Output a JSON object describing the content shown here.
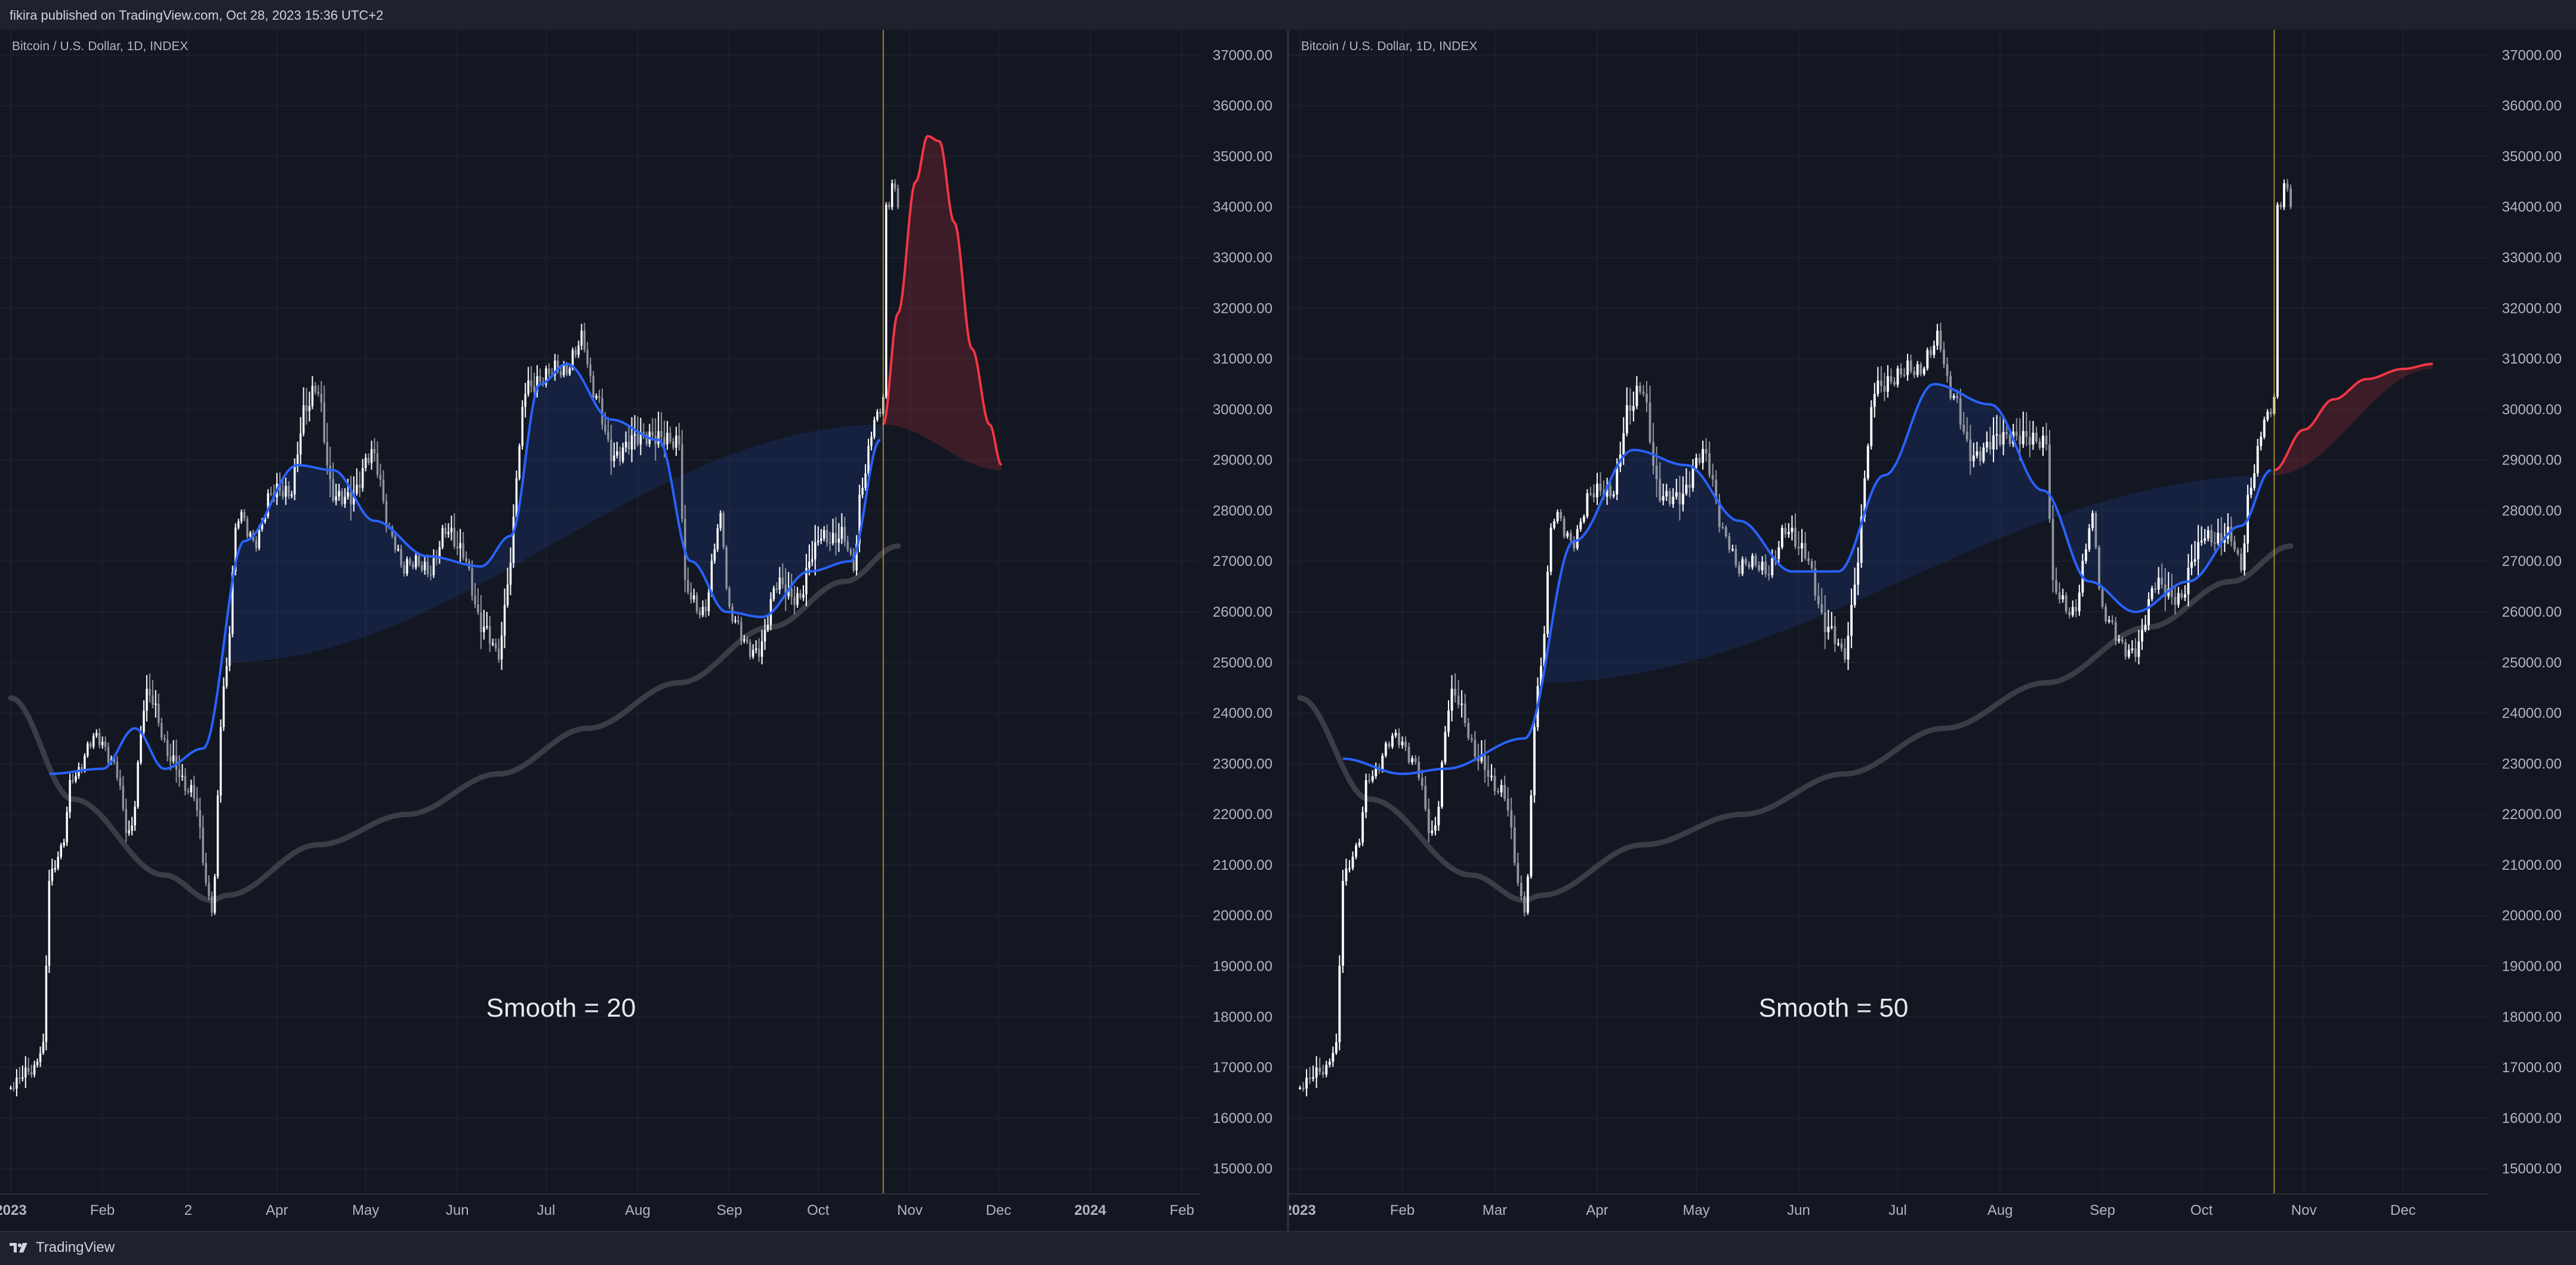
{
  "header": {
    "publish_info": "fikira published on TradingView.com, Oct 28, 2023 15:36 UTC+2"
  },
  "footer": {
    "brand_label": "TradingView"
  },
  "colors": {
    "background": "#131722",
    "candle_up": "#ffffff",
    "candle_down": "#8f939e",
    "smooth_line": "#2962ff",
    "forecast_line": "#f23645",
    "long_ma": "#3a3d46",
    "marker_line": "#c9a227",
    "fill_blue": "#2962ff",
    "fill_red": "#f23645"
  },
  "chart_data": [
    {
      "type": "candlestick",
      "title": "Bitcoin / U.S. Dollar, 1D, INDEX",
      "annotation": "Smooth = 20",
      "y_ticks": [
        "37000.00",
        "36000.00",
        "35000.00",
        "34000.00",
        "33000.00",
        "32000.00",
        "31000.00",
        "30000.00",
        "29000.00",
        "28000.00",
        "27000.00",
        "26000.00",
        "25000.00",
        "24000.00",
        "23000.00",
        "22000.00",
        "21000.00",
        "20000.00",
        "19000.00",
        "18000.00",
        "17000.00",
        "16000.00",
        "15000.00"
      ],
      "ylim": [
        14500,
        37500
      ],
      "x_ticks": [
        {
          "label": "2023",
          "date": "2023-01-01"
        },
        {
          "label": "Feb",
          "date": "2023-02-01"
        },
        {
          "label": "2",
          "date": "2023-03-02"
        },
        {
          "label": "Apr",
          "date": "2023-04-01"
        },
        {
          "label": "May",
          "date": "2023-05-01"
        },
        {
          "label": "Jun",
          "date": "2023-06-01"
        },
        {
          "label": "Jul",
          "date": "2023-07-01"
        },
        {
          "label": "Aug",
          "date": "2023-08-01"
        },
        {
          "label": "Sep",
          "date": "2023-09-01"
        },
        {
          "label": "Oct",
          "date": "2023-10-01"
        },
        {
          "label": "Nov",
          "date": "2023-11-01"
        },
        {
          "label": "Dec",
          "date": "2023-12-01"
        },
        {
          "label": "2024",
          "date": "2024-01-01"
        },
        {
          "label": "Feb",
          "date": "2024-02-01"
        }
      ],
      "x_range": [
        "2023-01-01",
        "2024-02-07"
      ],
      "current_date_marker": "2023-10-23",
      "price_series": [
        [
          "2023-01-01",
          16600
        ],
        [
          "2023-01-08",
          16900
        ],
        [
          "2023-01-12",
          17500
        ],
        [
          "2023-01-14",
          20800
        ],
        [
          "2023-01-18",
          21200
        ],
        [
          "2023-01-22",
          22700
        ],
        [
          "2023-01-29",
          23600
        ],
        [
          "2023-02-05",
          22900
        ],
        [
          "2023-02-10",
          21700
        ],
        [
          "2023-02-16",
          24300
        ],
        [
          "2023-02-24",
          23200
        ],
        [
          "2023-03-03",
          22400
        ],
        [
          "2023-03-10",
          20200
        ],
        [
          "2023-03-14",
          24600
        ],
        [
          "2023-03-19",
          27800
        ],
        [
          "2023-03-24",
          27400
        ],
        [
          "2023-03-30",
          28400
        ],
        [
          "2023-04-05",
          28200
        ],
        [
          "2023-04-11",
          30200
        ],
        [
          "2023-04-14",
          30500
        ],
        [
          "2023-04-20",
          28200
        ],
        [
          "2023-04-26",
          28400
        ],
        [
          "2023-05-03",
          29000
        ],
        [
          "2023-05-10",
          27600
        ],
        [
          "2023-05-14",
          26900
        ],
        [
          "2023-05-22",
          26800
        ],
        [
          "2023-05-28",
          27700
        ],
        [
          "2023-06-02",
          27100
        ],
        [
          "2023-06-10",
          25800
        ],
        [
          "2023-06-15",
          25100
        ],
        [
          "2023-06-19",
          26800
        ],
        [
          "2023-06-21",
          28800
        ],
        [
          "2023-06-24",
          30600
        ],
        [
          "2023-06-30",
          30500
        ],
        [
          "2023-07-06",
          30800
        ],
        [
          "2023-07-13",
          31400
        ],
        [
          "2023-07-17",
          30200
        ],
        [
          "2023-07-24",
          29200
        ],
        [
          "2023-07-31",
          29300
        ],
        [
          "2023-08-08",
          29600
        ],
        [
          "2023-08-15",
          29200
        ],
        [
          "2023-08-17",
          26400
        ],
        [
          "2023-08-23",
          26100
        ],
        [
          "2023-08-29",
          27700
        ],
        [
          "2023-09-01",
          25900
        ],
        [
          "2023-09-11",
          25200
        ],
        [
          "2023-09-18",
          26600
        ],
        [
          "2023-09-25",
          26300
        ],
        [
          "2023-09-29",
          27000
        ],
        [
          "2023-10-02",
          27500
        ],
        [
          "2023-10-09",
          27600
        ],
        [
          "2023-10-13",
          26800
        ],
        [
          "2023-10-16",
          28500
        ],
        [
          "2023-10-20",
          29900
        ],
        [
          "2023-10-23",
          30300
        ],
        [
          "2023-10-24",
          34000
        ],
        [
          "2023-10-26",
          34300
        ],
        [
          "2023-10-28",
          34000
        ]
      ],
      "smooth_line": [
        [
          "2023-01-14",
          22800
        ],
        [
          "2023-02-01",
          22900
        ],
        [
          "2023-02-12",
          23700
        ],
        [
          "2023-02-22",
          22900
        ],
        [
          "2023-03-07",
          23300
        ],
        [
          "2023-03-21",
          27400
        ],
        [
          "2023-04-08",
          28900
        ],
        [
          "2023-04-20",
          28800
        ],
        [
          "2023-05-04",
          27800
        ],
        [
          "2023-05-22",
          27100
        ],
        [
          "2023-06-09",
          26900
        ],
        [
          "2023-06-19",
          27500
        ],
        [
          "2023-06-29",
          30500
        ],
        [
          "2023-07-08",
          30900
        ],
        [
          "2023-07-23",
          29800
        ],
        [
          "2023-08-08",
          29400
        ],
        [
          "2023-08-19",
          27000
        ],
        [
          "2023-08-31",
          26000
        ],
        [
          "2023-09-12",
          25900
        ],
        [
          "2023-09-28",
          26800
        ],
        [
          "2023-10-12",
          27000
        ],
        [
          "2023-10-22",
          29400
        ]
      ],
      "forecast_line": [
        [
          "2023-10-23",
          29700
        ],
        [
          "2023-10-28",
          31900
        ],
        [
          "2023-11-03",
          34500
        ],
        [
          "2023-11-07",
          35400
        ],
        [
          "2023-11-11",
          35300
        ],
        [
          "2023-11-16",
          33700
        ],
        [
          "2023-11-22",
          31200
        ],
        [
          "2023-11-28",
          29700
        ],
        [
          "2023-12-02",
          28900
        ]
      ],
      "band_baseline": [
        [
          "2023-03-14",
          25000
        ],
        [
          "2023-10-23",
          29700
        ],
        [
          "2023-12-02",
          28800
        ]
      ],
      "long_ma": [
        [
          "2023-01-01",
          24300
        ],
        [
          "2023-01-22",
          22300
        ],
        [
          "2023-02-22",
          20800
        ],
        [
          "2023-03-10",
          20300
        ],
        [
          "2023-03-15",
          20400
        ],
        [
          "2023-04-15",
          21400
        ],
        [
          "2023-05-15",
          22000
        ],
        [
          "2023-06-15",
          22800
        ],
        [
          "2023-07-15",
          23700
        ],
        [
          "2023-08-15",
          24600
        ],
        [
          "2023-09-15",
          25700
        ],
        [
          "2023-10-10",
          26600
        ],
        [
          "2023-10-28",
          27300
        ]
      ]
    },
    {
      "type": "candlestick",
      "title": "Bitcoin / U.S. Dollar, 1D, INDEX",
      "annotation": "Smooth = 50",
      "y_ticks": [
        "37000.00",
        "36000.00",
        "35000.00",
        "34000.00",
        "33000.00",
        "32000.00",
        "31000.00",
        "30000.00",
        "29000.00",
        "28000.00",
        "27000.00",
        "26000.00",
        "25000.00",
        "24000.00",
        "23000.00",
        "22000.00",
        "21000.00",
        "20000.00",
        "19000.00",
        "18000.00",
        "17000.00",
        "16000.00",
        "15000.00"
      ],
      "ylim": [
        14500,
        37500
      ],
      "x_ticks": [
        {
          "label": "2023",
          "date": "2023-01-01"
        },
        {
          "label": "Feb",
          "date": "2023-02-01"
        },
        {
          "label": "Mar",
          "date": "2023-03-01"
        },
        {
          "label": "Apr",
          "date": "2023-04-01"
        },
        {
          "label": "May",
          "date": "2023-05-01"
        },
        {
          "label": "Jun",
          "date": "2023-06-01"
        },
        {
          "label": "Jul",
          "date": "2023-07-01"
        },
        {
          "label": "Aug",
          "date": "2023-08-01"
        },
        {
          "label": "Sep",
          "date": "2023-09-01"
        },
        {
          "label": "Oct",
          "date": "2023-10-01"
        },
        {
          "label": "Nov",
          "date": "2023-11-01"
        },
        {
          "label": "Dec",
          "date": "2023-12-01"
        }
      ],
      "x_range": [
        "2023-01-01",
        "2023-12-27"
      ],
      "current_date_marker": "2023-10-23",
      "price_series": [
        [
          "2023-01-01",
          16600
        ],
        [
          "2023-01-08",
          16900
        ],
        [
          "2023-01-12",
          17500
        ],
        [
          "2023-01-14",
          20800
        ],
        [
          "2023-01-18",
          21200
        ],
        [
          "2023-01-22",
          22700
        ],
        [
          "2023-01-29",
          23600
        ],
        [
          "2023-02-05",
          22900
        ],
        [
          "2023-02-10",
          21700
        ],
        [
          "2023-02-16",
          24300
        ],
        [
          "2023-02-24",
          23200
        ],
        [
          "2023-03-03",
          22400
        ],
        [
          "2023-03-10",
          20200
        ],
        [
          "2023-03-14",
          24600
        ],
        [
          "2023-03-19",
          27800
        ],
        [
          "2023-03-24",
          27400
        ],
        [
          "2023-03-30",
          28400
        ],
        [
          "2023-04-05",
          28200
        ],
        [
          "2023-04-11",
          30200
        ],
        [
          "2023-04-14",
          30500
        ],
        [
          "2023-04-20",
          28200
        ],
        [
          "2023-04-26",
          28400
        ],
        [
          "2023-05-03",
          29000
        ],
        [
          "2023-05-10",
          27600
        ],
        [
          "2023-05-14",
          26900
        ],
        [
          "2023-05-22",
          26800
        ],
        [
          "2023-05-28",
          27700
        ],
        [
          "2023-06-02",
          27100
        ],
        [
          "2023-06-10",
          25800
        ],
        [
          "2023-06-15",
          25100
        ],
        [
          "2023-06-19",
          26800
        ],
        [
          "2023-06-21",
          28800
        ],
        [
          "2023-06-24",
          30600
        ],
        [
          "2023-06-30",
          30500
        ],
        [
          "2023-07-06",
          30800
        ],
        [
          "2023-07-13",
          31400
        ],
        [
          "2023-07-17",
          30200
        ],
        [
          "2023-07-24",
          29200
        ],
        [
          "2023-07-31",
          29300
        ],
        [
          "2023-08-08",
          29600
        ],
        [
          "2023-08-15",
          29200
        ],
        [
          "2023-08-17",
          26400
        ],
        [
          "2023-08-23",
          26100
        ],
        [
          "2023-08-29",
          27700
        ],
        [
          "2023-09-01",
          25900
        ],
        [
          "2023-09-11",
          25200
        ],
        [
          "2023-09-18",
          26600
        ],
        [
          "2023-09-25",
          26300
        ],
        [
          "2023-09-29",
          27000
        ],
        [
          "2023-10-02",
          27500
        ],
        [
          "2023-10-09",
          27600
        ],
        [
          "2023-10-13",
          26800
        ],
        [
          "2023-10-16",
          28500
        ],
        [
          "2023-10-20",
          29900
        ],
        [
          "2023-10-23",
          30300
        ],
        [
          "2023-10-24",
          34000
        ],
        [
          "2023-10-26",
          34300
        ],
        [
          "2023-10-28",
          34000
        ]
      ],
      "smooth_line": [
        [
          "2023-01-14",
          23100
        ],
        [
          "2023-02-01",
          22800
        ],
        [
          "2023-02-14",
          22900
        ],
        [
          "2023-03-10",
          23500
        ],
        [
          "2023-03-25",
          27400
        ],
        [
          "2023-04-12",
          29200
        ],
        [
          "2023-04-28",
          28900
        ],
        [
          "2023-05-14",
          27800
        ],
        [
          "2023-05-30",
          26800
        ],
        [
          "2023-06-13",
          26800
        ],
        [
          "2023-06-27",
          28700
        ],
        [
          "2023-07-12",
          30500
        ],
        [
          "2023-07-29",
          30100
        ],
        [
          "2023-08-14",
          28400
        ],
        [
          "2023-08-28",
          26600
        ],
        [
          "2023-09-11",
          26000
        ],
        [
          "2023-09-27",
          26600
        ],
        [
          "2023-10-13",
          27700
        ],
        [
          "2023-10-22",
          28800
        ]
      ],
      "forecast_line": [
        [
          "2023-10-23",
          28800
        ],
        [
          "2023-11-01",
          29600
        ],
        [
          "2023-11-10",
          30200
        ],
        [
          "2023-11-20",
          30600
        ],
        [
          "2023-12-01",
          30800
        ],
        [
          "2023-12-10",
          30900
        ]
      ],
      "band_baseline": [
        [
          "2023-03-14",
          24600
        ],
        [
          "2023-10-23",
          28700
        ],
        [
          "2023-12-10",
          30800
        ]
      ],
      "long_ma": [
        [
          "2023-01-01",
          24300
        ],
        [
          "2023-01-22",
          22300
        ],
        [
          "2023-02-22",
          20800
        ],
        [
          "2023-03-10",
          20300
        ],
        [
          "2023-03-15",
          20400
        ],
        [
          "2023-04-15",
          21400
        ],
        [
          "2023-05-15",
          22000
        ],
        [
          "2023-06-15",
          22800
        ],
        [
          "2023-07-15",
          23700
        ],
        [
          "2023-08-15",
          24600
        ],
        [
          "2023-09-15",
          25700
        ],
        [
          "2023-10-10",
          26600
        ],
        [
          "2023-10-28",
          27300
        ]
      ]
    }
  ]
}
